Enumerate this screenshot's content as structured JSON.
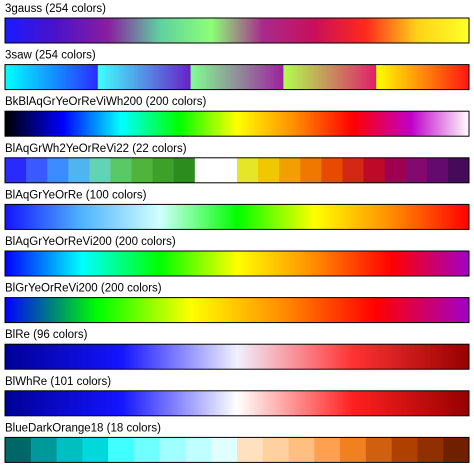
{
  "colormaps": [
    {
      "label": "3gauss (254 colors)",
      "segments": [
        [
          "#1a1aff",
          "#4b13c8",
          "#8a1ea0",
          "#5fd0a0",
          "#8cff78",
          "#a82a8c",
          "#c8105a",
          "#ff2a1a",
          "#ffd21a",
          "#ffff28"
        ]
      ]
    },
    {
      "label": "3saw (254 colors)",
      "segments": [
        [
          "#00ffff",
          "#2a2aff"
        ],
        [
          "#40ffff",
          "#6a1ec8"
        ],
        [
          "#80ff90",
          "#a01ea0"
        ],
        [
          "#b0ff50",
          "#e01e6a"
        ],
        [
          "#ffff00",
          "#ff1414"
        ]
      ]
    },
    {
      "label": "BkBlAqGrYeOrReViWh200 (200 colors)",
      "segments": [
        [
          "#000000",
          "#0000ff",
          "#00ffff",
          "#00ff00",
          "#ffff00",
          "#ff8c00",
          "#ff0000",
          "#c000c8",
          "#ffffff"
        ]
      ]
    },
    {
      "label": "BlAqGrWh2YeOrReVi22 (22 colors)",
      "segments": [
        [
          "#2a2aff"
        ],
        [
          "#3a5aff"
        ],
        [
          "#3c8cff"
        ],
        [
          "#50b4f0"
        ],
        [
          "#64d2b4"
        ],
        [
          "#5ac864"
        ],
        [
          "#50b43c"
        ],
        [
          "#3ca02a"
        ],
        [
          "#2d8c1e"
        ],
        [
          "#ffffff"
        ],
        [
          "#ffffff"
        ],
        [
          "#e6e628"
        ],
        [
          "#f0c800"
        ],
        [
          "#f0a000"
        ],
        [
          "#f07800"
        ],
        [
          "#e64b00"
        ],
        [
          "#d22814"
        ],
        [
          "#be0a28"
        ],
        [
          "#a00050"
        ],
        [
          "#820a6e"
        ],
        [
          "#640a6e"
        ],
        [
          "#460a5a"
        ]
      ]
    },
    {
      "label": "BlAqGrYeOrRe (100 colors)",
      "segments": [
        [
          "#1414ff",
          "#50b4ff",
          "#d2ffff",
          "#00ff00",
          "#ffff00",
          "#ff8c00",
          "#ff0000"
        ]
      ]
    },
    {
      "label": "BlAqGrYeOrReVi200 (200 colors)",
      "segments": [
        [
          "#0000ff",
          "#00ffff",
          "#00ff00",
          "#ffff00",
          "#ff8c00",
          "#ff0000",
          "#a000c8"
        ]
      ]
    },
    {
      "label": "BlGrYeOrReVi200 (200 colors)",
      "segments": [
        [
          "#0000ff",
          "#00ff00",
          "#ffff00",
          "#ff8c00",
          "#ff0000",
          "#a000c8"
        ]
      ]
    },
    {
      "label": "BlRe (96 colors)",
      "segments": [
        [
          "#000096",
          "#1414ff",
          "#f0f0ff",
          "#ff3232",
          "#960000"
        ]
      ]
    },
    {
      "label": "BlWhRe (101 colors)",
      "segments": [
        [
          "#000096",
          "#1414ff",
          "#ffffff",
          "#ff2020",
          "#960000"
        ]
      ]
    },
    {
      "label": "BlueDarkOrange18 (18 colors)",
      "segments": [
        [
          "#006666"
        ],
        [
          "#009999"
        ],
        [
          "#00bfbf"
        ],
        [
          "#00d9d9"
        ],
        [
          "#40ffff"
        ],
        [
          "#70ffff"
        ],
        [
          "#9fffff"
        ],
        [
          "#bfffff"
        ],
        [
          "#e0ffff"
        ],
        [
          "#ffe0bf"
        ],
        [
          "#ffd0a0"
        ],
        [
          "#ffbf80"
        ],
        [
          "#ffa050"
        ],
        [
          "#f08020"
        ],
        [
          "#d06010"
        ],
        [
          "#b04000"
        ],
        [
          "#903000"
        ],
        [
          "#702000"
        ]
      ]
    }
  ]
}
